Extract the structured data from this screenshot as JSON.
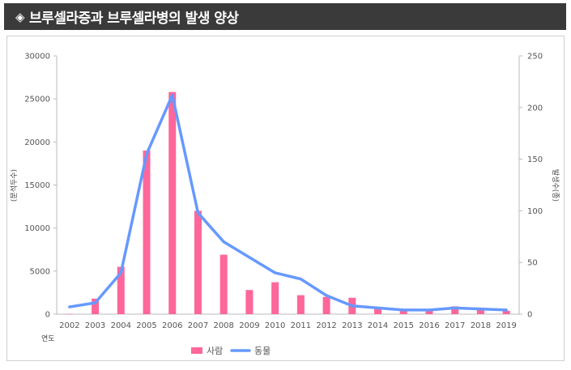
{
  "header": {
    "icon": "diamond-icon",
    "title": "브루셀라증과 브루셀라병의 발생 양상"
  },
  "chart_data": {
    "type": "bar+line",
    "title": "브루셀라증과 브루셀라병의 발생 양상",
    "categories": [
      "2002",
      "2003",
      "2004",
      "2005",
      "2006",
      "2007",
      "2008",
      "2009",
      "2010",
      "2011",
      "2012",
      "2013",
      "2014",
      "2015",
      "2016",
      "2017",
      "2018",
      "2019"
    ],
    "series": [
      {
        "name": "사람",
        "type": "bar",
        "axis": "left",
        "color": "#ff6699",
        "values": [
          17,
          1800,
          5500,
          19000,
          25800,
          12000,
          6900,
          2800,
          3700,
          2200,
          2000,
          1900,
          800,
          500,
          600,
          900,
          600,
          400
        ]
      },
      {
        "name": "동물",
        "type": "line",
        "axis": "right",
        "color": "#6699ff",
        "values": [
          7,
          11,
          40,
          155,
          212,
          98,
          70,
          55,
          40,
          34,
          18,
          8,
          6,
          4,
          4,
          6,
          5,
          4
        ]
      }
    ],
    "ylabel": "(분석두수)",
    "y2label": "발생수(종)",
    "xlabel": "연도",
    "ylim": [
      0,
      30000
    ],
    "y2lim": [
      0,
      250
    ],
    "yticks": [
      "0",
      "5000",
      "10000",
      "15000",
      "20000",
      "25000",
      "30000"
    ],
    "y2ticks": [
      "0",
      "50",
      "100",
      "150",
      "200",
      "250"
    ],
    "legend": "bottom-center"
  }
}
